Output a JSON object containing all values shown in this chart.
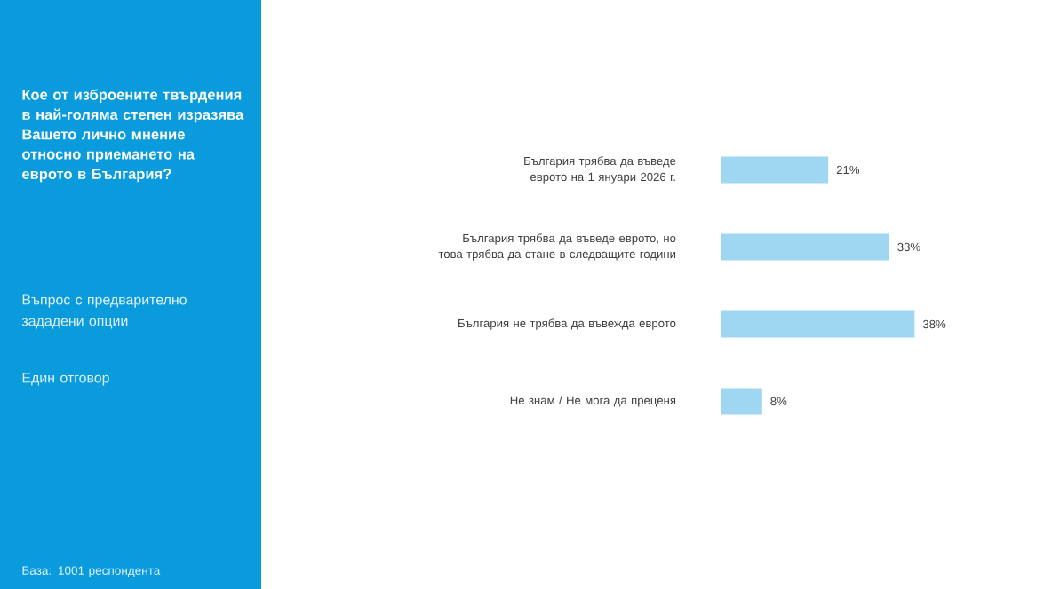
{
  "chart_data": {
    "type": "bar",
    "orientation": "horizontal",
    "title": "Кое от изброените твърдения в най-голяма степен изразява Вашето лично мнение относно приемането на еврото в България?",
    "categories": [
      "България трябва да въведе еврото на 1 януари 2026 г.",
      "България трябва да въведе еврото, но това трябва да стане в следващите години",
      "България не трябва да въвежда еврото",
      "Не знам / Не мога да преценя"
    ],
    "values": [
      21,
      33,
      38,
      8
    ],
    "value_labels": [
      "21%",
      "33%",
      "38%",
      "8%"
    ],
    "color": "#9fd6f2",
    "annotations": [
      "Въпрос с предварително зададени опции",
      "Един отговор",
      "База:  1001 респондента"
    ]
  }
}
